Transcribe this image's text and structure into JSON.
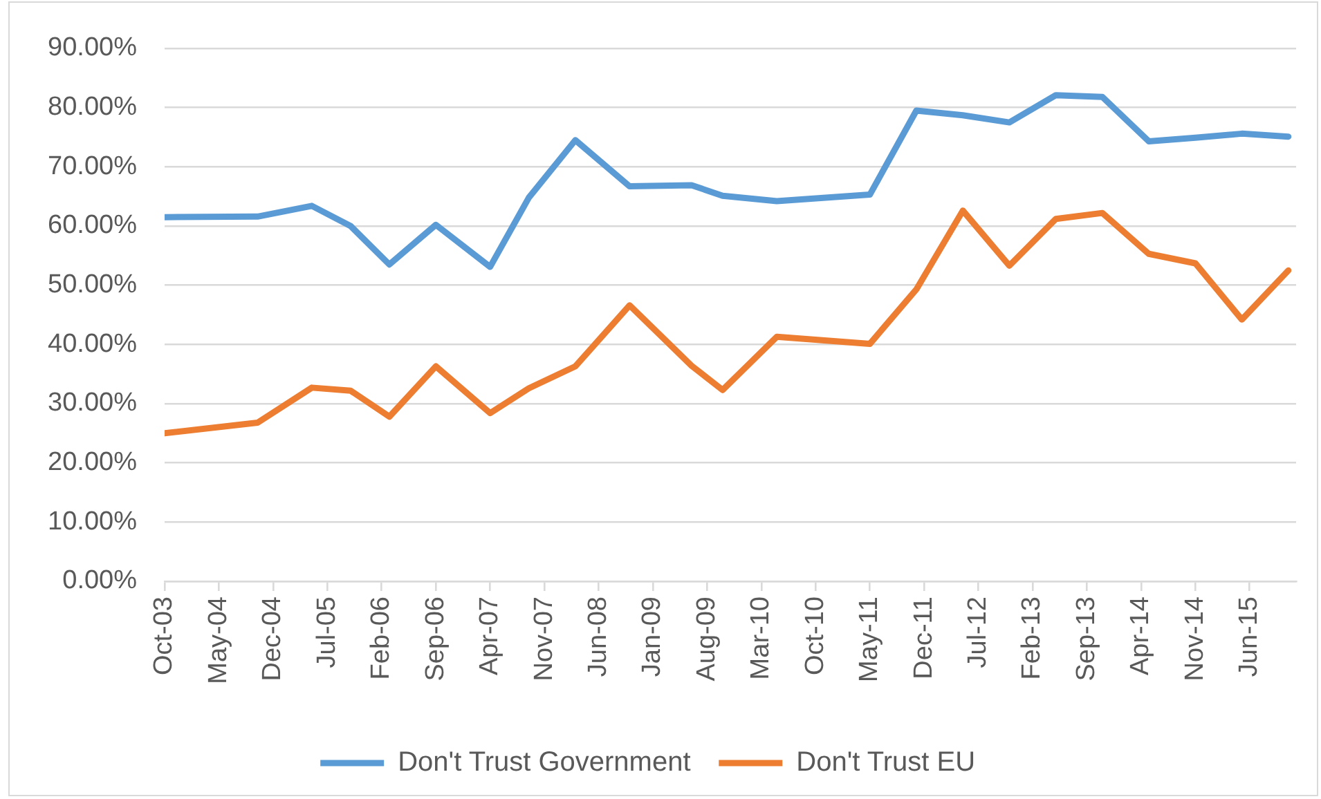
{
  "chart_data": {
    "type": "line",
    "x": [
      "2003-10",
      "2004-10",
      "2005-05",
      "2005-10",
      "2006-03",
      "2006-09",
      "2007-04",
      "2007-09",
      "2008-03",
      "2008-10",
      "2009-06",
      "2009-10",
      "2010-05",
      "2011-05",
      "2011-11",
      "2012-05",
      "2012-11",
      "2013-05",
      "2013-11",
      "2014-05",
      "2014-11",
      "2015-05",
      "2015-11"
    ],
    "series": [
      {
        "name": "Don't Trust Government",
        "color": "#5b9bd5",
        "values": [
          61.5,
          61.6,
          63.4,
          60.0,
          53.5,
          60.2,
          53.1,
          64.8,
          74.5,
          66.7,
          66.9,
          65.1,
          64.2,
          65.3,
          79.5,
          78.7,
          77.5,
          82.1,
          81.8,
          74.3,
          74.9,
          75.6,
          75.1
        ]
      },
      {
        "name": "Don't Trust EU",
        "color": "#ed7d31",
        "values": [
          25.0,
          26.8,
          32.7,
          32.2,
          27.8,
          36.3,
          28.4,
          32.6,
          36.3,
          46.6,
          36.4,
          32.3,
          41.3,
          40.1,
          49.3,
          62.6,
          53.3,
          61.2,
          62.2,
          55.3,
          53.7,
          44.2,
          52.5
        ]
      }
    ],
    "xlim": [
      "2003-10",
      "2015-12"
    ],
    "xticks": [
      {
        "value": "2003-10",
        "label": "Oct-03"
      },
      {
        "value": "2004-05",
        "label": "May-04"
      },
      {
        "value": "2004-12",
        "label": "Dec-04"
      },
      {
        "value": "2005-07",
        "label": "Jul-05"
      },
      {
        "value": "2006-02",
        "label": "Feb-06"
      },
      {
        "value": "2006-09",
        "label": "Sep-06"
      },
      {
        "value": "2007-04",
        "label": "Apr-07"
      },
      {
        "value": "2007-11",
        "label": "Nov-07"
      },
      {
        "value": "2008-06",
        "label": "Jun-08"
      },
      {
        "value": "2009-01",
        "label": "Jan-09"
      },
      {
        "value": "2009-08",
        "label": "Aug-09"
      },
      {
        "value": "2010-03",
        "label": "Mar-10"
      },
      {
        "value": "2010-10",
        "label": "Oct-10"
      },
      {
        "value": "2011-05",
        "label": "May-11"
      },
      {
        "value": "2011-12",
        "label": "Dec-11"
      },
      {
        "value": "2012-07",
        "label": "Jul-12"
      },
      {
        "value": "2013-02",
        "label": "Feb-13"
      },
      {
        "value": "2013-09",
        "label": "Sep-13"
      },
      {
        "value": "2014-04",
        "label": "Apr-14"
      },
      {
        "value": "2014-11",
        "label": "Nov-14"
      },
      {
        "value": "2015-06",
        "label": "Jun-15"
      }
    ],
    "ylim": [
      0,
      90
    ],
    "yticks": [
      {
        "value": 0,
        "label": "0.00%"
      },
      {
        "value": 10,
        "label": "10.00%"
      },
      {
        "value": 20,
        "label": "20.00%"
      },
      {
        "value": 30,
        "label": "30.00%"
      },
      {
        "value": 40,
        "label": "40.00%"
      },
      {
        "value": 50,
        "label": "50.00%"
      },
      {
        "value": 60,
        "label": "60.00%"
      },
      {
        "value": 70,
        "label": "70.00%"
      },
      {
        "value": 80,
        "label": "80.00%"
      },
      {
        "value": 90,
        "label": "90.00%"
      }
    ],
    "grid": "y",
    "legend": "bottom"
  }
}
